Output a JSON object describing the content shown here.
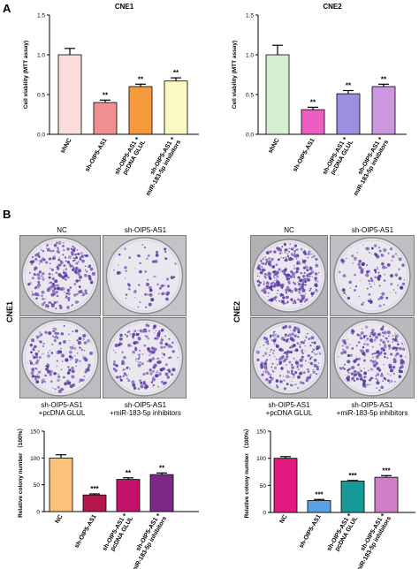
{
  "panel_labels": {
    "a": "A",
    "b": "B"
  },
  "colony_photos": {
    "cne1": {
      "side_label": "CNE1",
      "nc": "NC",
      "sh": "sh-OIP5-AS1",
      "sh_glul_1": "sh-OIP5-AS1",
      "sh_glul_2": "+pcDNA GLUL",
      "sh_mir_1": "sh-OIP5-AS1",
      "sh_mir_2": "+miR-183-5p inhibitors"
    },
    "cne2": {
      "side_label": "CNE2",
      "nc": "NC",
      "sh": "sh-OIP5-AS1",
      "sh_glul_1": "sh-OIP5-AS1",
      "sh_glul_2": "+pcDNA GLUL",
      "sh_mir_1": "sh-OIP5-AS1",
      "sh_mir_2": "+miR-183-5p inhibitors"
    }
  },
  "chart_data": [
    {
      "id": "cne1-viability",
      "type": "bar",
      "title": "CNE1",
      "xlabel": "",
      "ylabel": "Cell viability (MTT assay)",
      "ylim": [
        0,
        1.5
      ],
      "yticks": [
        "0.0",
        "0.5",
        "1.0",
        "1.5"
      ],
      "ytick_values": [
        0,
        0.5,
        1.0,
        1.5
      ],
      "categories": [
        "shNC",
        "sh-OIP5-AS1",
        "sh-OIP5-AS1 + pcDNA GLUL",
        "sh-OIP5-AS1 + miR-183-5p inhibitors"
      ],
      "values": [
        1.0,
        0.4,
        0.6,
        0.67
      ],
      "errors": [
        0.08,
        0.03,
        0.03,
        0.04
      ],
      "significance": [
        "",
        "**",
        "**",
        "**"
      ],
      "colors": [
        "#fbdcdc",
        "#f08f92",
        "#f59a3c",
        "#fbf8c4"
      ]
    },
    {
      "id": "cne2-viability",
      "type": "bar",
      "title": "CNE2",
      "xlabel": "",
      "ylabel": "Cell viability (MTT assay)",
      "ylim": [
        0,
        1.5
      ],
      "yticks": [
        "0.0",
        "0.5",
        "1.0",
        "1.5"
      ],
      "ytick_values": [
        0,
        0.5,
        1.0,
        1.5
      ],
      "categories": [
        "shNC",
        "sh-OIP5-AS1",
        "sh-OIP5-AS1 + pcDNA GLUL",
        "sh-OIP5-AS1 + miR-183-5p inhibitors"
      ],
      "values": [
        1.0,
        0.31,
        0.51,
        0.6
      ],
      "errors": [
        0.12,
        0.03,
        0.04,
        0.03
      ],
      "significance": [
        "",
        "**",
        "**",
        "**"
      ],
      "colors": [
        "#d6efd2",
        "#ea5fc1",
        "#9d8fe0",
        "#cc97de"
      ]
    },
    {
      "id": "cne1-colony",
      "type": "bar",
      "title": "",
      "xlabel": "",
      "ylabel": "Relative colony number （100%）",
      "ylim": [
        0,
        150
      ],
      "yticks": [
        "0",
        "50",
        "100",
        "150"
      ],
      "ytick_values": [
        0,
        50,
        100,
        150
      ],
      "categories": [
        "NC",
        "sh-OIP5-AS1",
        "sh-OIP5-AS1 + pcDNA GLUL",
        "sh-OIP5-AS1 + miR-183-5p inhibitors"
      ],
      "values": [
        100,
        31,
        60,
        69
      ],
      "errors": [
        6,
        2,
        3,
        3
      ],
      "significance": [
        "",
        "***",
        "**",
        "**"
      ],
      "colors": [
        "#fcc27c",
        "#b5174d",
        "#c5116a",
        "#7d2a87"
      ]
    },
    {
      "id": "cne2-colony",
      "type": "bar",
      "title": "",
      "xlabel": "",
      "ylabel": "Relative colony number （100%）",
      "ylim": [
        0,
        150
      ],
      "yticks": [
        "0",
        "50",
        "100",
        "150"
      ],
      "ytick_values": [
        0,
        50,
        100,
        150
      ],
      "categories": [
        "NC",
        "sh-OIP5-AS1",
        "sh-OIP5-AS1 + pcDNA GLUL",
        "sh-OIP5-AS1 + miR-183-5p inhibitors"
      ],
      "values": [
        100,
        22,
        58,
        65
      ],
      "errors": [
        3,
        2,
        1,
        3
      ],
      "significance": [
        "",
        "***",
        "***",
        "***"
      ],
      "colors": [
        "#e2197f",
        "#5aa0e2",
        "#179a97",
        "#d07fc7"
      ]
    }
  ]
}
